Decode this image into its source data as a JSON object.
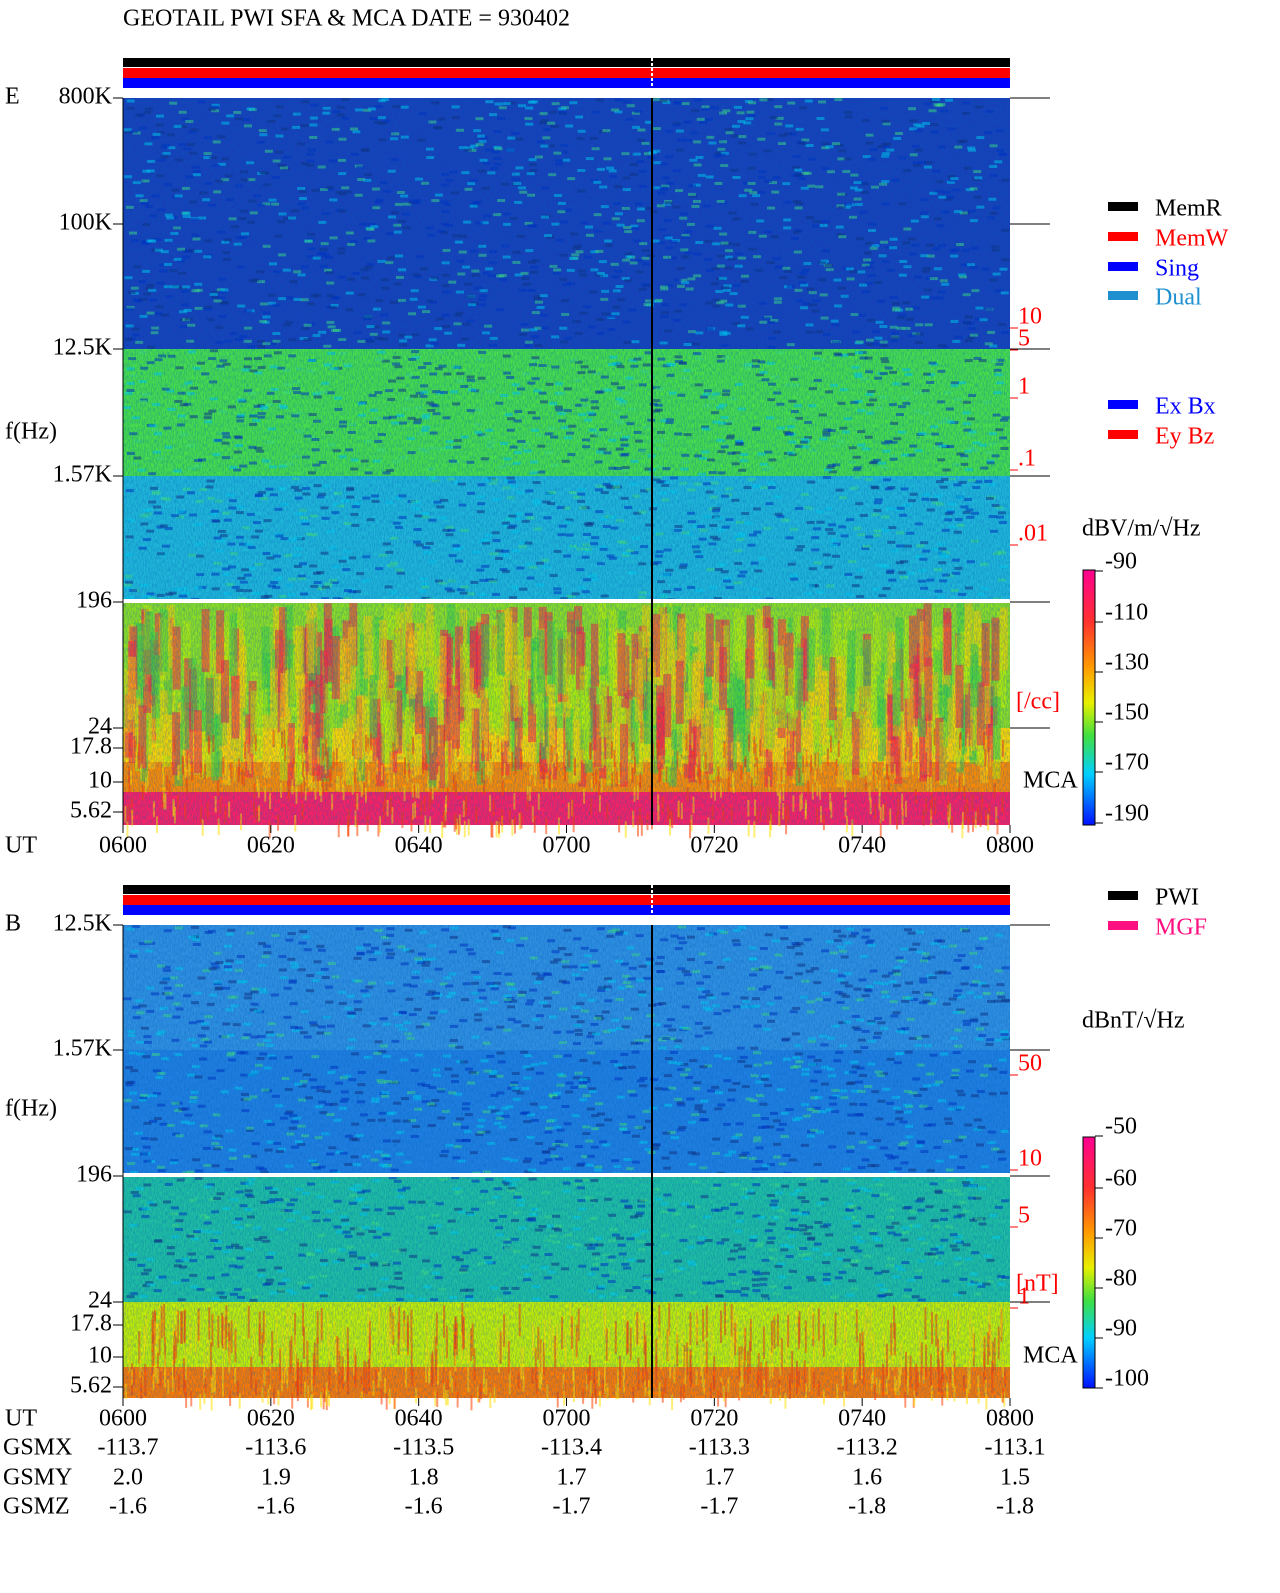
{
  "title": "GEOTAIL  PWI SFA & MCA   DATE = 930402",
  "panel_e": {
    "label": "E",
    "y_label": "f(Hz)",
    "freq_ticks": [
      "800K",
      "100K",
      "12.5K",
      "1.57K",
      "196",
      "24",
      "17.8",
      "10",
      "5.62"
    ],
    "time_label": "UT",
    "time_ticks": [
      "0600",
      "0620",
      "0640",
      "0700",
      "0720",
      "0740",
      "0800"
    ],
    "density_ticks": [
      "10",
      "5",
      "1",
      ".1",
      ".01"
    ],
    "density_unit": "[/cc]",
    "mca": "MCA",
    "legend": [
      {
        "name": "MemR",
        "color": "#000000"
      },
      {
        "name": "MemW",
        "color": "#ff0000"
      },
      {
        "name": "Sing",
        "color": "#0000ff"
      },
      {
        "name": "Dual",
        "color": "#1e90d0"
      }
    ],
    "legend2": [
      {
        "name": "Ex Bx",
        "color": "#0000ff"
      },
      {
        "name": "Ey Bz",
        "color": "#ff0000"
      }
    ],
    "colorbar_unit": "dBV/m/√Hz",
    "colorbar_ticks": [
      "-90",
      "-110",
      "-130",
      "-150",
      "-170",
      "-190"
    ]
  },
  "panel_b": {
    "label": "B",
    "y_label": "f(Hz)",
    "freq_ticks": [
      "12.5K",
      "1.57K",
      "196",
      "24",
      "17.8",
      "10",
      "5.62"
    ],
    "time_label": "UT",
    "time_ticks": [
      "0600",
      "0620",
      "0640",
      "0700",
      "0720",
      "0740",
      "0800"
    ],
    "density_ticks": [
      "50",
      "10",
      "5",
      "1"
    ],
    "density_unit": "[nT]",
    "mca": "MCA",
    "legend": [
      {
        "name": "PWI",
        "color": "#000000"
      },
      {
        "name": "MGF",
        "color": "#ff1080"
      }
    ],
    "colorbar_unit": "dBnT/√Hz",
    "colorbar_ticks": [
      "-50",
      "-60",
      "-70",
      "-80",
      "-90",
      "-100"
    ]
  },
  "orbit": [
    {
      "label": "GSMX",
      "values": [
        "-113.7",
        "-113.6",
        "-113.5",
        "-113.4",
        "-113.3",
        "-113.2",
        "-113.1"
      ]
    },
    {
      "label": "GSMY",
      "values": [
        "2.0",
        "1.9",
        "1.8",
        "1.7",
        "1.7",
        "1.6",
        "1.5"
      ]
    },
    {
      "label": "GSMZ",
      "values": [
        "-1.6",
        "-1.6",
        "-1.6",
        "-1.7",
        "-1.7",
        "-1.8",
        "-1.8"
      ]
    }
  ]
}
